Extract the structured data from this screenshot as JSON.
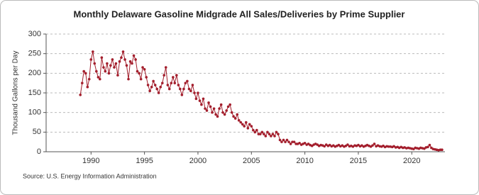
{
  "chart_data": {
    "type": "line",
    "title": "Monthly Delaware Gasoline Midgrade All Sales/Deliveries by Prime Supplier",
    "y_label": "Thousand Gallons per Day",
    "source": "Source: U.S. Energy Information Administration",
    "xlim": [
      1985.8,
      2023.1
    ],
    "xticks": [
      1990,
      1995,
      2000,
      2005,
      2010,
      2015,
      2020
    ],
    "ylim": [
      0,
      300
    ],
    "yticks": [
      0,
      50,
      100,
      150,
      200,
      250,
      300
    ],
    "grid": true,
    "x": [
      1989.0,
      1989.17,
      1989.33,
      1989.5,
      1989.67,
      1989.83,
      1990.0,
      1990.17,
      1990.33,
      1990.5,
      1990.67,
      1990.83,
      1991.0,
      1991.17,
      1991.33,
      1991.5,
      1991.67,
      1991.83,
      1992.0,
      1992.17,
      1992.33,
      1992.5,
      1992.67,
      1992.83,
      1993.0,
      1993.17,
      1993.33,
      1993.5,
      1993.67,
      1993.83,
      1994.0,
      1994.17,
      1994.33,
      1994.5,
      1994.67,
      1994.83,
      1995.0,
      1995.17,
      1995.33,
      1995.5,
      1995.67,
      1995.83,
      1996.0,
      1996.17,
      1996.33,
      1996.5,
      1996.67,
      1996.83,
      1997.0,
      1997.17,
      1997.33,
      1997.5,
      1997.67,
      1997.83,
      1998.0,
      1998.17,
      1998.33,
      1998.5,
      1998.67,
      1998.83,
      1999.0,
      1999.17,
      1999.33,
      1999.5,
      1999.67,
      1999.83,
      2000.0,
      2000.17,
      2000.33,
      2000.5,
      2000.67,
      2000.83,
      2001.0,
      2001.17,
      2001.33,
      2001.5,
      2001.67,
      2001.83,
      2002.0,
      2002.17,
      2002.33,
      2002.5,
      2002.67,
      2002.83,
      2003.0,
      2003.17,
      2003.33,
      2003.5,
      2003.67,
      2003.83,
      2004.0,
      2004.17,
      2004.33,
      2004.5,
      2004.67,
      2004.83,
      2005.0,
      2005.17,
      2005.33,
      2005.5,
      2005.67,
      2005.83,
      2006.0,
      2006.17,
      2006.33,
      2006.5,
      2006.67,
      2006.83,
      2007.0,
      2007.17,
      2007.33,
      2007.5,
      2007.67,
      2007.83,
      2008.0,
      2008.17,
      2008.33,
      2008.5,
      2008.67,
      2008.83,
      2009.0,
      2009.17,
      2009.33,
      2009.5,
      2009.67,
      2009.83,
      2010.0,
      2010.17,
      2010.33,
      2010.5,
      2010.67,
      2010.83,
      2011.0,
      2011.17,
      2011.33,
      2011.5,
      2011.67,
      2011.83,
      2012.0,
      2012.17,
      2012.33,
      2012.5,
      2012.67,
      2012.83,
      2013.0,
      2013.17,
      2013.33,
      2013.5,
      2013.67,
      2013.83,
      2014.0,
      2014.17,
      2014.33,
      2014.5,
      2014.67,
      2014.83,
      2015.0,
      2015.17,
      2015.33,
      2015.5,
      2015.67,
      2015.83,
      2016.0,
      2016.17,
      2016.33,
      2016.5,
      2016.67,
      2016.83,
      2017.0,
      2017.17,
      2017.33,
      2017.5,
      2017.67,
      2017.83,
      2018.0,
      2018.17,
      2018.33,
      2018.5,
      2018.67,
      2018.83,
      2019.0,
      2019.17,
      2019.33,
      2019.5,
      2019.67,
      2019.83,
      2020.0,
      2020.17,
      2020.33,
      2020.5,
      2020.67,
      2020.83,
      2021.0,
      2021.17,
      2021.33,
      2021.5,
      2021.67,
      2021.83,
      2022.0,
      2022.17,
      2022.33,
      2022.5,
      2022.67,
      2022.83
    ],
    "series": [
      {
        "name": "Delaware Gasoline Midgrade",
        "color": "#a31e2c",
        "values": [
          145,
          175,
          205,
          200,
          165,
          185,
          235,
          255,
          225,
          205,
          190,
          185,
          240,
          215,
          205,
          225,
          200,
          220,
          235,
          215,
          225,
          195,
          230,
          240,
          255,
          235,
          220,
          185,
          230,
          225,
          245,
          235,
          205,
          200,
          185,
          215,
          210,
          190,
          170,
          155,
          165,
          180,
          170,
          160,
          150,
          165,
          175,
          195,
          215,
          170,
          160,
          175,
          190,
          175,
          195,
          170,
          160,
          145,
          160,
          175,
          180,
          160,
          155,
          170,
          150,
          135,
          150,
          130,
          120,
          135,
          110,
          105,
          125,
          115,
          100,
          110,
          95,
          90,
          110,
          120,
          100,
          95,
          105,
          115,
          120,
          100,
          90,
          85,
          95,
          80,
          75,
          70,
          65,
          75,
          60,
          70,
          65,
          55,
          50,
          55,
          45,
          45,
          50,
          45,
          40,
          50,
          45,
          40,
          45,
          40,
          50,
          45,
          30,
          25,
          30,
          25,
          30,
          25,
          20,
          25,
          25,
          20,
          20,
          22,
          18,
          20,
          22,
          18,
          20,
          17,
          15,
          18,
          20,
          18,
          15,
          17,
          16,
          14,
          18,
          15,
          17,
          14,
          16,
          13,
          15,
          17,
          14,
          16,
          13,
          15,
          18,
          14,
          15,
          13,
          16,
          15,
          17,
          14,
          16,
          13,
          15,
          17,
          15,
          13,
          16,
          20,
          14,
          16,
          14,
          13,
          15,
          12,
          14,
          13,
          13,
          12,
          14,
          11,
          12,
          10,
          12,
          10,
          11,
          9,
          10,
          9,
          8,
          7,
          10,
          9,
          8,
          10,
          9,
          8,
          11,
          12,
          17,
          10,
          7,
          6,
          5,
          4,
          5,
          5
        ]
      }
    ]
  }
}
